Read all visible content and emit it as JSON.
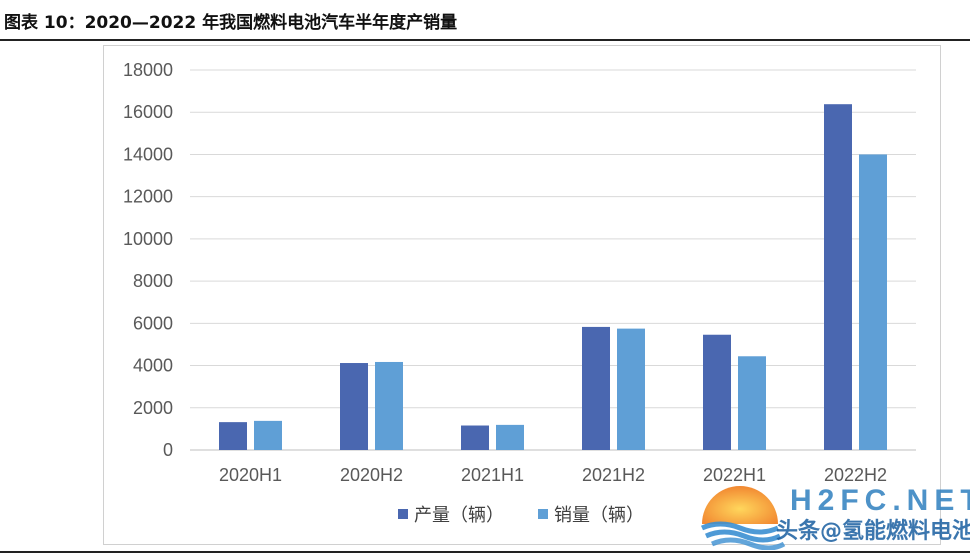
{
  "figure": {
    "title": "图表 10：2020—2022 年我国燃料电池汽车半年度产销量"
  },
  "watermark": {
    "brand_en": "H2FC.NET",
    "brand_cn": "头条@氢能燃料电池网"
  },
  "colors": {
    "production": "#4a67b0",
    "sales": "#5f9fd6",
    "gridline": "#d9d9d9"
  },
  "chart_data": {
    "type": "bar",
    "categories": [
      "2020H1",
      "2020H2",
      "2021H1",
      "2021H2",
      "2022H1",
      "2022H2"
    ],
    "series": [
      {
        "name": "产量（辆）",
        "values": [
          1320,
          4120,
          1160,
          5830,
          5460,
          16380
        ]
      },
      {
        "name": "销量（辆）",
        "values": [
          1380,
          4170,
          1190,
          5750,
          4440,
          14000
        ]
      }
    ],
    "yticks": [
      "0",
      "2000",
      "4000",
      "6000",
      "8000",
      "10000",
      "12000",
      "14000",
      "16000",
      "18000"
    ],
    "ylim": [
      0,
      18000
    ],
    "grid": true,
    "legend": "bottom-center"
  }
}
